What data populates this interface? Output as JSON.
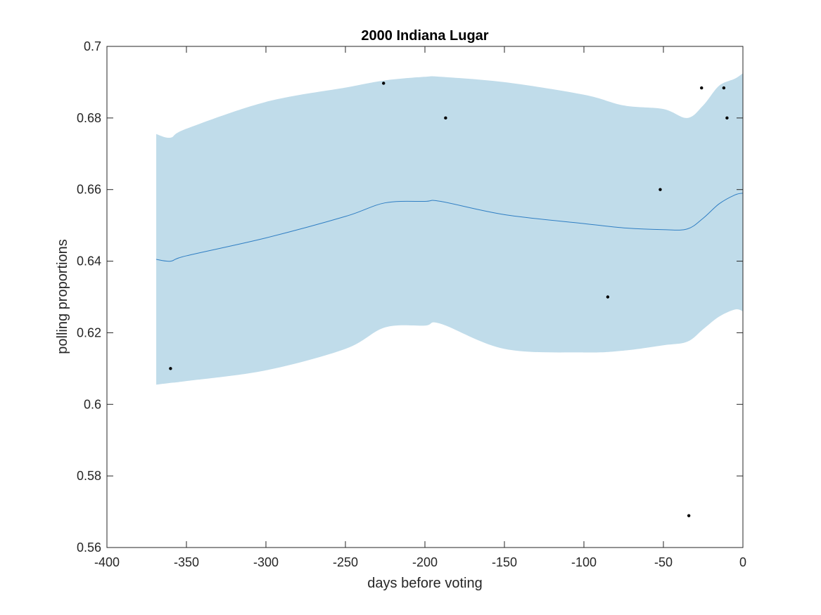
{
  "chart_data": {
    "type": "line",
    "title": "2000 Indiana Lugar",
    "xlabel": "days before voting",
    "ylabel": "polling proportions",
    "xlim": [
      -400,
      0
    ],
    "ylim": [
      0.56,
      0.7
    ],
    "xticks": [
      -400,
      -350,
      -300,
      -250,
      -200,
      -150,
      -100,
      -50,
      0
    ],
    "xtick_labels": [
      "-400",
      "-350",
      "-300",
      "-250",
      "-200",
      "-150",
      "-100",
      "-50",
      "0"
    ],
    "yticks": [
      0.56,
      0.58,
      0.6,
      0.62,
      0.64,
      0.66,
      0.68,
      0.7
    ],
    "ytick_labels": [
      "0.56",
      "0.58",
      "0.6",
      "0.62",
      "0.64",
      "0.66",
      "0.68",
      "0.7"
    ],
    "grid": false,
    "colors": {
      "band": "#c0dcea",
      "line": "#2f7ec3",
      "points": "#000000",
      "axes": "#262626"
    },
    "band": {
      "x": [
        -369,
        -360,
        -350,
        -300,
        -250,
        -225,
        -200,
        -190,
        -150,
        -100,
        -75,
        -50,
        -35,
        -25,
        -15,
        -5,
        0
      ],
      "upper": [
        0.6755,
        0.6745,
        0.677,
        0.6845,
        0.6885,
        0.6905,
        0.6915,
        0.6915,
        0.69,
        0.6865,
        0.6835,
        0.6825,
        0.68,
        0.6835,
        0.689,
        0.691,
        0.6925
      ],
      "lower": [
        0.6055,
        0.606,
        0.6065,
        0.6095,
        0.6155,
        0.6215,
        0.622,
        0.6225,
        0.6155,
        0.6145,
        0.615,
        0.6165,
        0.6175,
        0.621,
        0.6245,
        0.6265,
        0.626
      ]
    },
    "series": [
      {
        "x": [
          -369,
          -360,
          -350,
          -300,
          -250,
          -225,
          -200,
          -190,
          -150,
          -100,
          -75,
          -50,
          -35,
          -25,
          -15,
          -5,
          0
        ],
        "values": [
          0.6405,
          0.64,
          0.6415,
          0.6465,
          0.6525,
          0.6563,
          0.6567,
          0.6567,
          0.653,
          0.6505,
          0.6493,
          0.6488,
          0.649,
          0.652,
          0.656,
          0.6585,
          0.659
        ]
      }
    ],
    "points": {
      "x": [
        -360,
        -226,
        -187,
        -85,
        -52,
        -34,
        -26,
        -12,
        -10
      ],
      "y": [
        0.61,
        0.6897,
        0.68,
        0.63,
        0.66,
        0.5689,
        0.6884,
        0.6884,
        0.68
      ]
    }
  }
}
